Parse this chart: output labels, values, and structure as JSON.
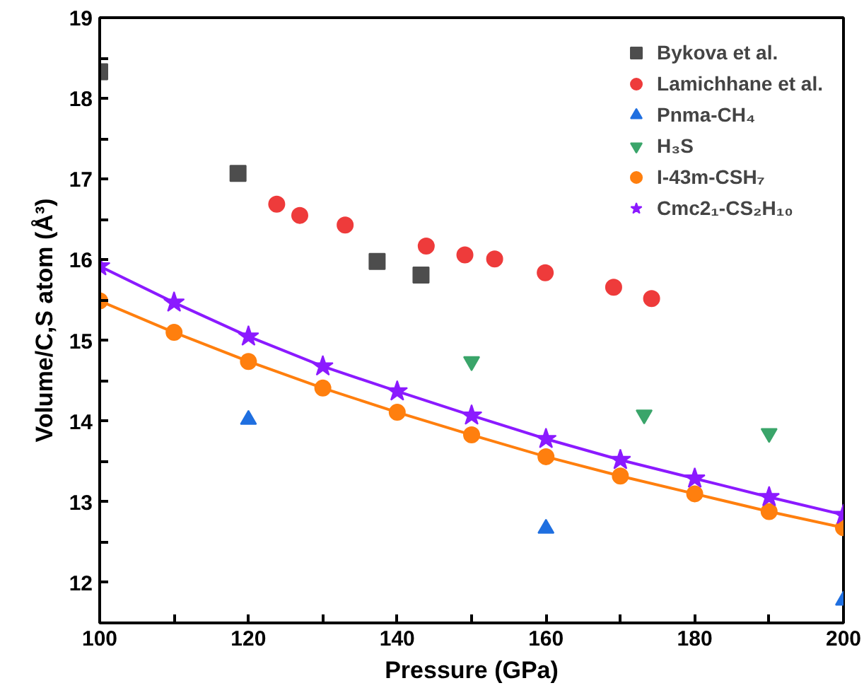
{
  "chart_data": {
    "type": "scatter",
    "xlabel": "Pressure (GPa)",
    "ylabel": "Volume/C,S atom (Å³)",
    "xlim": [
      100,
      200
    ],
    "ylim": [
      11.5,
      19
    ],
    "xticks": [
      100,
      {
        "value": 110,
        "label": null
      },
      120,
      {
        "value": 130,
        "label": null
      },
      140,
      {
        "value": 150,
        "label": null
      },
      160,
      {
        "value": 170,
        "label": null
      },
      180,
      {
        "value": 190,
        "label": null
      },
      200
    ],
    "yticks": [
      {
        "value": 11.5,
        "label": null
      },
      12,
      {
        "value": 12.5,
        "label": null
      },
      13,
      {
        "value": 13.5,
        "label": null
      },
      14,
      {
        "value": 14.5,
        "label": null
      },
      15,
      {
        "value": 15.5,
        "label": null
      },
      16,
      {
        "value": 16.5,
        "label": null
      },
      17,
      {
        "value": 17.5,
        "label": null
      },
      18,
      {
        "value": 18.5,
        "label": null
      },
      19
    ],
    "grid": false,
    "legend": "top right",
    "series": [
      {
        "name": "Bykova et al.",
        "marker": "square",
        "color": "#4d4d4d",
        "x": [
          100,
          118.6,
          137.3,
          143.2
        ],
        "values": [
          18.33,
          17.07,
          15.98,
          15.81
        ]
      },
      {
        "name": "Lamichhane et al.",
        "marker": "circle",
        "color": "#ee3b3b",
        "x": [
          123.8,
          126.9,
          133.0,
          143.9,
          149.1,
          153.1,
          159.9,
          169.1,
          174.2
        ],
        "values": [
          16.69,
          16.55,
          16.43,
          16.17,
          16.06,
          16.01,
          15.84,
          15.66,
          15.52
        ]
      },
      {
        "name": "Pnma-CH₄",
        "marker": "triangle",
        "color": "#1f6fe0",
        "x": [
          120,
          160,
          200
        ],
        "values": [
          14.02,
          12.67,
          11.78
        ]
      },
      {
        "name": "H₃S",
        "marker": "triangle_down",
        "color": "#3aa56a",
        "x": [
          150,
          173.2,
          190
        ],
        "values": [
          14.74,
          14.08,
          13.85
        ]
      },
      {
        "name": "I-43m-CSH₇",
        "type": "line",
        "marker": "circle",
        "line_style": "solid",
        "color": "#ff7f0e",
        "x": [
          100,
          110,
          120,
          130,
          140,
          150,
          160,
          170,
          180,
          190,
          200
        ],
        "values": [
          15.49,
          15.1,
          14.74,
          14.41,
          14.11,
          13.83,
          13.56,
          13.32,
          13.1,
          12.88,
          12.68
        ]
      },
      {
        "name": "Cmc2₁-CS₂H₁₀",
        "type": "line",
        "marker": "star",
        "line_style": "solid",
        "color": "#8b1aff",
        "x": [
          100,
          110,
          120,
          130,
          140,
          150,
          160,
          170,
          180,
          190,
          200
        ],
        "values": [
          15.92,
          15.47,
          15.05,
          14.68,
          14.37,
          14.07,
          13.78,
          13.52,
          13.29,
          13.06,
          12.84
        ]
      }
    ]
  }
}
